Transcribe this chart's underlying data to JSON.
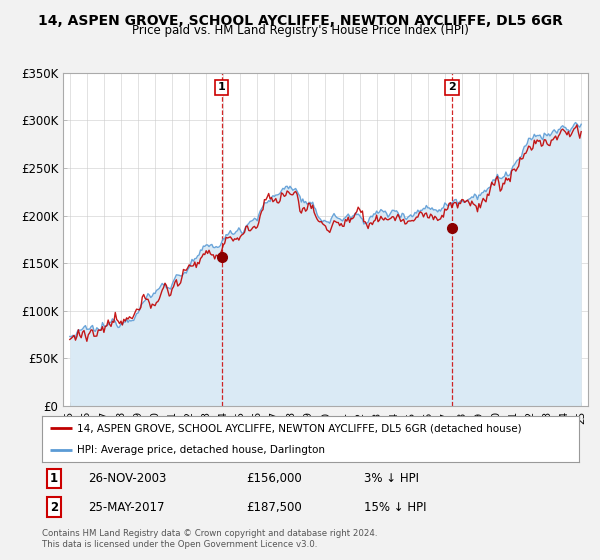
{
  "title": "14, ASPEN GROVE, SCHOOL AYCLIFFE, NEWTON AYCLIFFE, DL5 6GR",
  "subtitle": "Price paid vs. HM Land Registry's House Price Index (HPI)",
  "ylim": [
    0,
    350000
  ],
  "yticks": [
    0,
    50000,
    100000,
    150000,
    200000,
    250000,
    300000,
    350000
  ],
  "ytick_labels": [
    "£0",
    "£50K",
    "£100K",
    "£150K",
    "£200K",
    "£250K",
    "£300K",
    "£350K"
  ],
  "sale1_date": 2003.9,
  "sale1_price": 156000,
  "sale1_label": "1",
  "sale1_text": "26-NOV-2003",
  "sale1_price_text": "£156,000",
  "sale1_hpi_text": "3% ↓ HPI",
  "sale2_date": 2017.42,
  "sale2_price": 187500,
  "sale2_label": "2",
  "sale2_text": "25-MAY-2017",
  "sale2_price_text": "£187,500",
  "sale2_hpi_text": "15% ↓ HPI",
  "legend_line1": "14, ASPEN GROVE, SCHOOL AYCLIFFE, NEWTON AYCLIFFE, DL5 6GR (detached house)",
  "legend_line2": "HPI: Average price, detached house, Darlington",
  "footnote": "Contains HM Land Registry data © Crown copyright and database right 2024.\nThis data is licensed under the Open Government Licence v3.0.",
  "hpi_fill_color": "#daeaf5",
  "hpi_line_color": "#5b9bd5",
  "price_color": "#c00000",
  "sale_marker_color": "#8b0000",
  "vline_color": "#cc0000",
  "bg_color": "#f2f2f2",
  "plot_bg": "#ffffff",
  "grid_color": "#cccccc",
  "title_fontsize": 10,
  "subtitle_fontsize": 8.5
}
